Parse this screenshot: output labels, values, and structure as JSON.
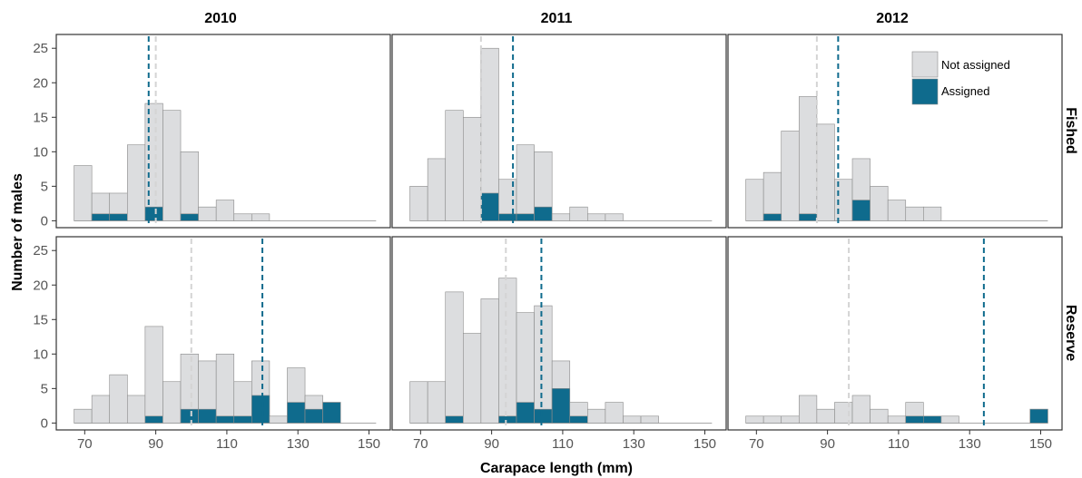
{
  "chart_data": {
    "type": "bar",
    "subtype": "stacked-histogram-facet-grid",
    "xlabel": "Carapace length (mm)",
    "ylabel": "Number of males",
    "xticks": [
      70,
      90,
      110,
      130,
      150
    ],
    "yticks": [
      0,
      5,
      10,
      15,
      20,
      25
    ],
    "xlim": [
      62,
      156
    ],
    "ylim": [
      -1,
      27
    ],
    "bin_width": 5,
    "bin_starts": [
      67,
      72,
      77,
      82,
      87,
      92,
      97,
      102,
      107,
      112,
      117,
      122,
      127,
      132,
      137,
      142,
      147
    ],
    "years": [
      "2010",
      "2011",
      "2012"
    ],
    "areas": [
      "Fished",
      "Reserve"
    ],
    "legend": {
      "position": "top-right",
      "items": [
        {
          "label": "Not assigned",
          "color": "#dcdddf"
        },
        {
          "label": "Assigned",
          "color": "#0f6b8d"
        }
      ]
    },
    "colors": {
      "not_assigned": "#dcdddf",
      "assigned": "#0f6b8d",
      "bar_outline": "#8a8a8a",
      "mean_not_assigned": "#d4d4d4",
      "mean_assigned": "#0f6b8d"
    },
    "panels": [
      {
        "year": "2010",
        "area": "Fished",
        "totals": [
          8,
          4,
          4,
          11,
          17,
          16,
          10,
          2,
          3,
          1,
          1,
          0,
          0,
          0,
          0,
          0,
          0
        ],
        "assigned": [
          0,
          1,
          1,
          0,
          2,
          0,
          1,
          0,
          0,
          0,
          0,
          0,
          0,
          0,
          0,
          0,
          0
        ],
        "mean_not_assigned": 90,
        "mean_assigned": 88
      },
      {
        "year": "2011",
        "area": "Fished",
        "totals": [
          5,
          9,
          16,
          15,
          25,
          6,
          11,
          10,
          1,
          2,
          1,
          1,
          0,
          0,
          0,
          0,
          0
        ],
        "assigned": [
          0,
          0,
          0,
          0,
          4,
          1,
          1,
          2,
          0,
          0,
          0,
          0,
          0,
          0,
          0,
          0,
          0
        ],
        "mean_not_assigned": 87,
        "mean_assigned": 96
      },
      {
        "year": "2012",
        "area": "Fished",
        "totals": [
          6,
          7,
          13,
          18,
          14,
          6,
          9,
          5,
          3,
          2,
          2,
          0,
          0,
          0,
          0,
          0,
          0
        ],
        "assigned": [
          0,
          1,
          0,
          1,
          0,
          0,
          3,
          0,
          0,
          0,
          0,
          0,
          0,
          0,
          0,
          0,
          0
        ],
        "mean_not_assigned": 87,
        "mean_assigned": 93
      },
      {
        "year": "2010",
        "area": "Reserve",
        "totals": [
          2,
          4,
          7,
          4,
          14,
          6,
          10,
          9,
          10,
          6,
          9,
          1,
          8,
          4,
          3,
          0,
          0
        ],
        "assigned": [
          0,
          0,
          0,
          0,
          1,
          0,
          2,
          2,
          1,
          1,
          4,
          0,
          3,
          2,
          3,
          0,
          0
        ],
        "mean_not_assigned": 100,
        "mean_assigned": 120
      },
      {
        "year": "2011",
        "area": "Reserve",
        "totals": [
          6,
          6,
          19,
          13,
          18,
          21,
          16,
          17,
          9,
          3,
          2,
          3,
          1,
          1,
          0,
          0,
          0
        ],
        "assigned": [
          0,
          0,
          1,
          0,
          0,
          1,
          3,
          2,
          5,
          1,
          0,
          0,
          0,
          0,
          0,
          0,
          0
        ],
        "mean_not_assigned": 94,
        "mean_assigned": 104
      },
      {
        "year": "2012",
        "area": "Reserve",
        "totals": [
          1,
          1,
          1,
          4,
          2,
          3,
          4,
          2,
          1,
          3,
          1,
          1,
          0,
          0,
          0,
          0,
          2
        ],
        "assigned": [
          0,
          0,
          0,
          0,
          0,
          0,
          0,
          0,
          0,
          1,
          1,
          0,
          0,
          0,
          0,
          0,
          2
        ],
        "mean_not_assigned": 96,
        "mean_assigned": 134
      }
    ]
  }
}
